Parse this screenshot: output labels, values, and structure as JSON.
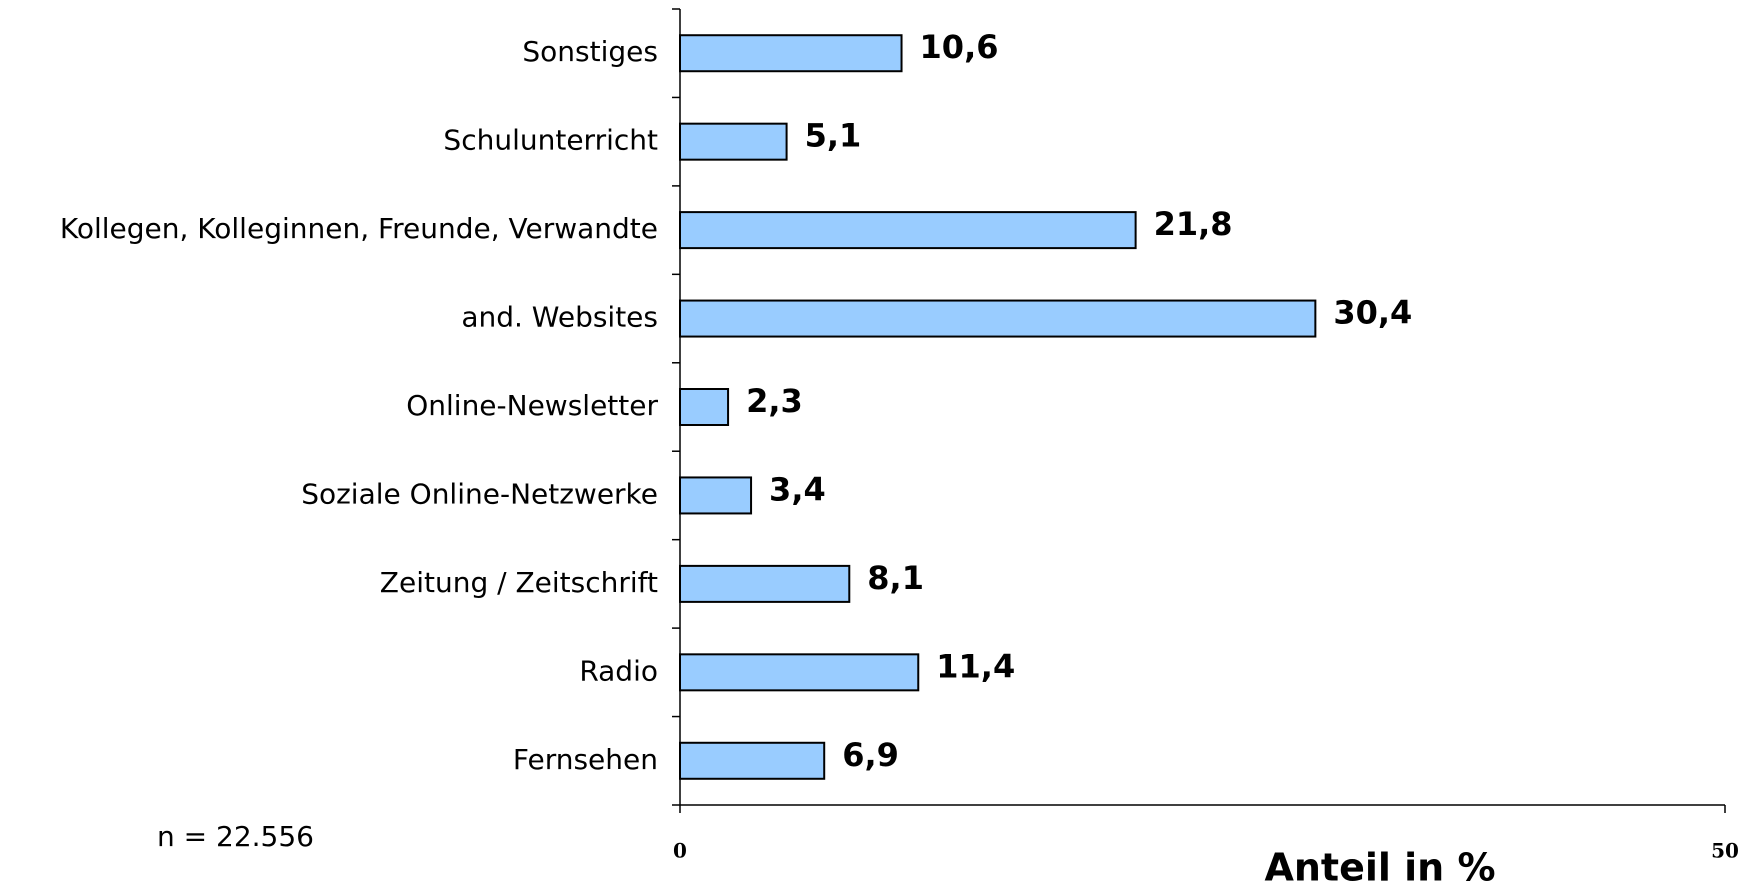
{
  "chart_data": {
    "type": "bar",
    "orientation": "horizontal",
    "categories": [
      "Sonstiges",
      "Schulunterricht",
      "Kollegen, Kolleginnen, Freunde, Verwandte",
      "and. Websites",
      "Online-Newsletter",
      "Soziale Online-Netzwerke",
      "Zeitung / Zeitschrift",
      "Radio",
      "Fernsehen"
    ],
    "values": [
      10.6,
      5.1,
      21.8,
      30.4,
      2.3,
      3.4,
      8.1,
      11.4,
      6.9
    ],
    "value_labels": [
      "10,6",
      "5,1",
      "21,8",
      "30,4",
      "2,3",
      "3,4",
      "8,1",
      "11,4",
      "6,9"
    ],
    "color": "#99ccff",
    "xlim": [
      0,
      50
    ],
    "xticks": [
      0,
      50
    ],
    "x_label": "Anteil in %",
    "annotation": "n = 22.556"
  }
}
